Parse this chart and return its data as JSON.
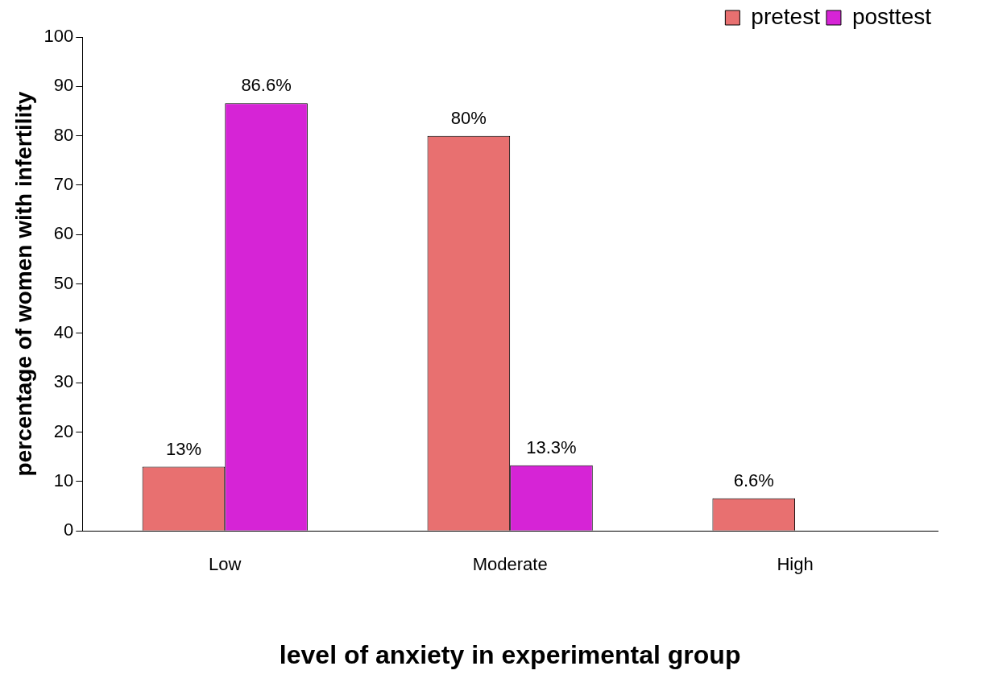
{
  "chart_data": {
    "type": "bar",
    "xlabel": "level of anxiety in experimental group",
    "ylabel": "percentage of women with infertility",
    "categories": [
      "Low",
      "Moderate",
      "High"
    ],
    "series": [
      {
        "name": "pretest",
        "color": "#e87070",
        "values": [
          13,
          80,
          6.6
        ],
        "value_labels": [
          "13%",
          "80%",
          "6.6%"
        ]
      },
      {
        "name": "posttest",
        "color": "#d624d6",
        "values": [
          86.6,
          13.3,
          null
        ],
        "value_labels": [
          "86.6%",
          "13.3%",
          null
        ]
      }
    ],
    "ylim": [
      0,
      100
    ],
    "yticks": [
      0,
      10,
      20,
      30,
      40,
      50,
      60,
      70,
      80,
      90,
      100
    ],
    "grid": false,
    "legend": "top right"
  }
}
